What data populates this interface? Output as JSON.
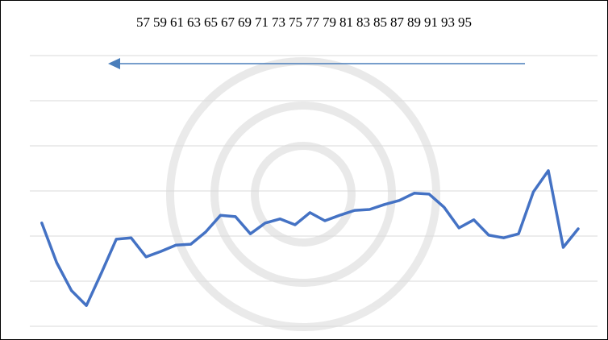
{
  "chart_data": {
    "type": "line",
    "x": [
      57,
      58,
      59,
      60,
      61,
      62,
      63,
      64,
      65,
      66,
      67,
      68,
      69,
      70,
      71,
      72,
      73,
      74,
      75,
      76,
      77,
      78,
      79,
      80,
      81,
      82,
      83,
      84,
      85,
      86,
      87,
      88,
      89,
      90,
      91,
      92,
      93
    ],
    "values": [
      2.29,
      1.41,
      0.79,
      0.46,
      1.18,
      1.93,
      1.96,
      1.54,
      1.66,
      1.8,
      1.82,
      2.09,
      2.46,
      2.43,
      2.05,
      2.29,
      2.38,
      2.25,
      2.52,
      2.34,
      2.46,
      2.57,
      2.59,
      2.7,
      2.79,
      2.95,
      2.93,
      2.64,
      2.18,
      2.36,
      2.02,
      1.96,
      2.05,
      2.98,
      3.45,
      1.75,
      2.16
    ],
    "color": "#4472c4",
    "xlim": [
      56.2,
      94.3
    ],
    "xticks": [
      57,
      59,
      61,
      63,
      65,
      67,
      69,
      71,
      73,
      75,
      77,
      79,
      81,
      83,
      85,
      87,
      89,
      91,
      93,
      95
    ],
    "ylim": [
      0,
      6
    ],
    "yticks": [
      0,
      1,
      2,
      3,
      4,
      5,
      6
    ],
    "grid": true
  }
}
